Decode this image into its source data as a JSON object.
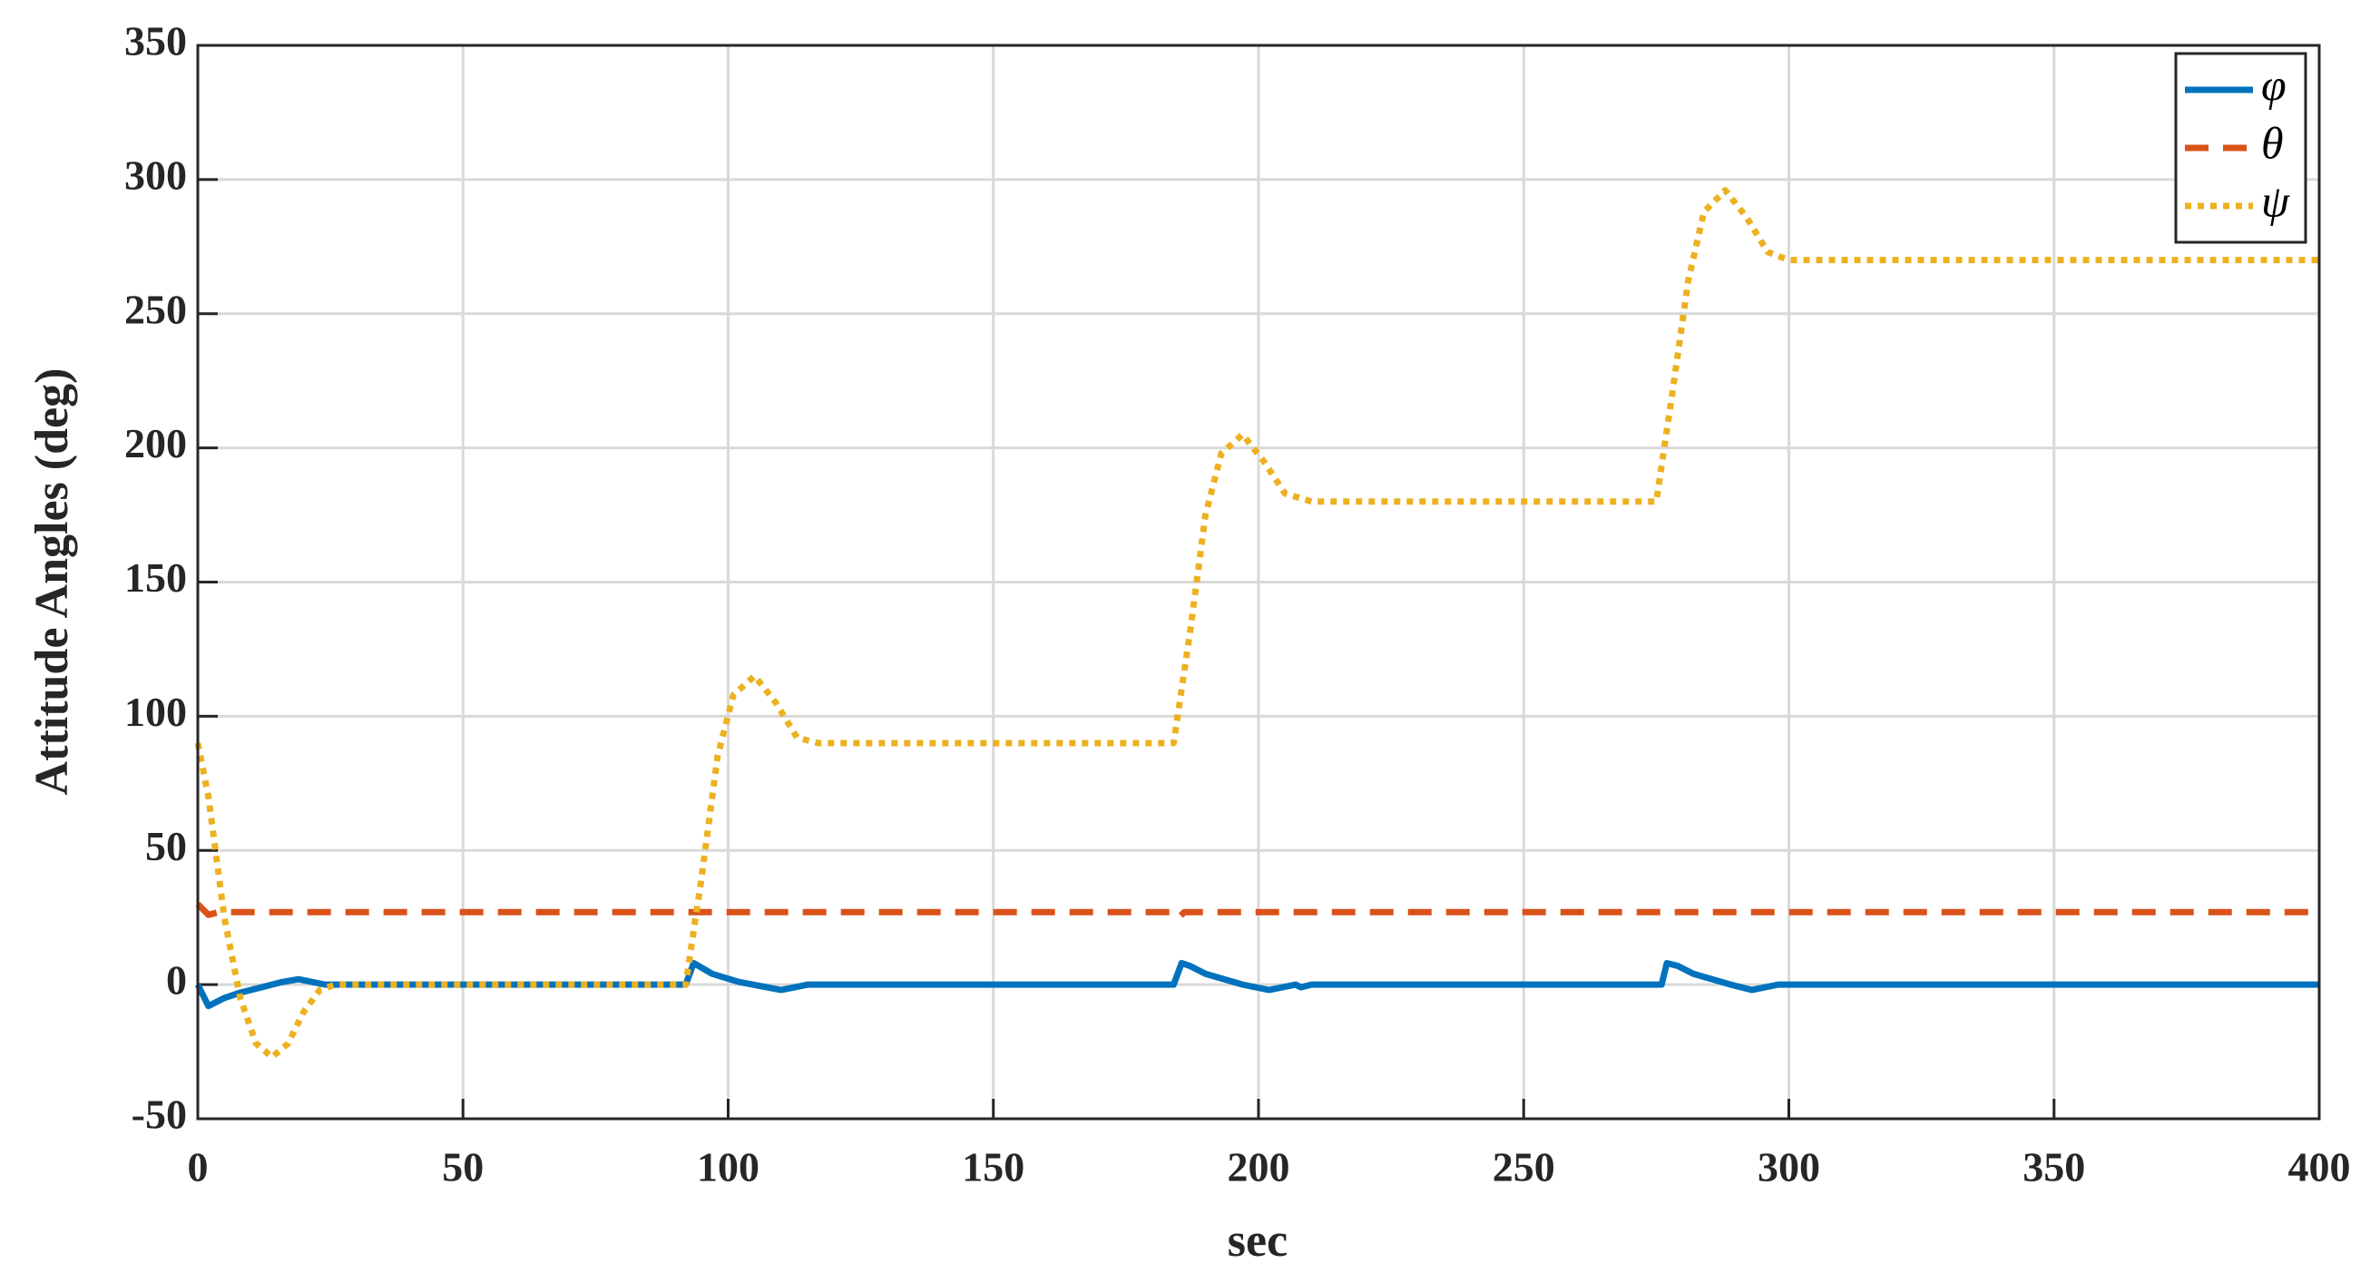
{
  "chart_data": {
    "type": "line",
    "xlabel": "sec",
    "ylabel": "Attitude Angles (deg)",
    "xlim": [
      0,
      400
    ],
    "ylim": [
      -50,
      350
    ],
    "xticks": [
      0,
      50,
      100,
      150,
      200,
      250,
      300,
      350,
      400
    ],
    "yticks": [
      -50,
      0,
      50,
      100,
      150,
      200,
      250,
      300,
      350
    ],
    "grid": true,
    "legend": "upper right",
    "series": [
      {
        "name": "φ",
        "color": "#0072BD",
        "dash": "solid",
        "x": [
          0,
          2,
          5,
          8,
          12,
          16,
          19,
          24,
          92,
          93.5,
          97,
          102,
          110,
          115,
          184,
          185.5,
          187,
          190,
          197,
          202,
          207,
          208,
          210,
          276,
          277,
          279,
          282,
          289,
          293,
          298,
          400
        ],
        "values": [
          0,
          -8,
          -5,
          -3,
          -1,
          1,
          2,
          0,
          0,
          8,
          4,
          1,
          -2,
          0,
          0,
          8,
          7,
          4,
          0,
          -2,
          0,
          -1,
          0,
          0,
          8,
          7,
          4,
          0,
          -2,
          0,
          0
        ]
      },
      {
        "name": "θ",
        "color": "#D95319",
        "dash": "dashed",
        "x": [
          0,
          2,
          4,
          184,
          185,
          186,
          400
        ],
        "values": [
          30,
          26,
          27,
          27,
          25,
          27,
          27
        ]
      },
      {
        "name": "ψ",
        "color": "#EDB120",
        "dash": "dotted",
        "x": [
          0,
          2,
          5,
          8,
          11,
          14,
          17,
          20,
          23,
          26,
          92,
          95,
          98,
          101,
          105,
          109,
          113,
          117,
          184,
          187,
          190,
          193,
          197,
          201,
          205,
          210,
          275,
          278,
          281,
          284,
          288,
          292,
          296,
          300,
          400
        ],
        "values": [
          90,
          70,
          25,
          -5,
          -22,
          -27,
          -22,
          -10,
          -2,
          0,
          0,
          40,
          85,
          108,
          115,
          105,
          92,
          90,
          90,
          130,
          175,
          198,
          205,
          195,
          183,
          180,
          180,
          220,
          262,
          288,
          296,
          286,
          273,
          270,
          270
        ]
      }
    ]
  }
}
